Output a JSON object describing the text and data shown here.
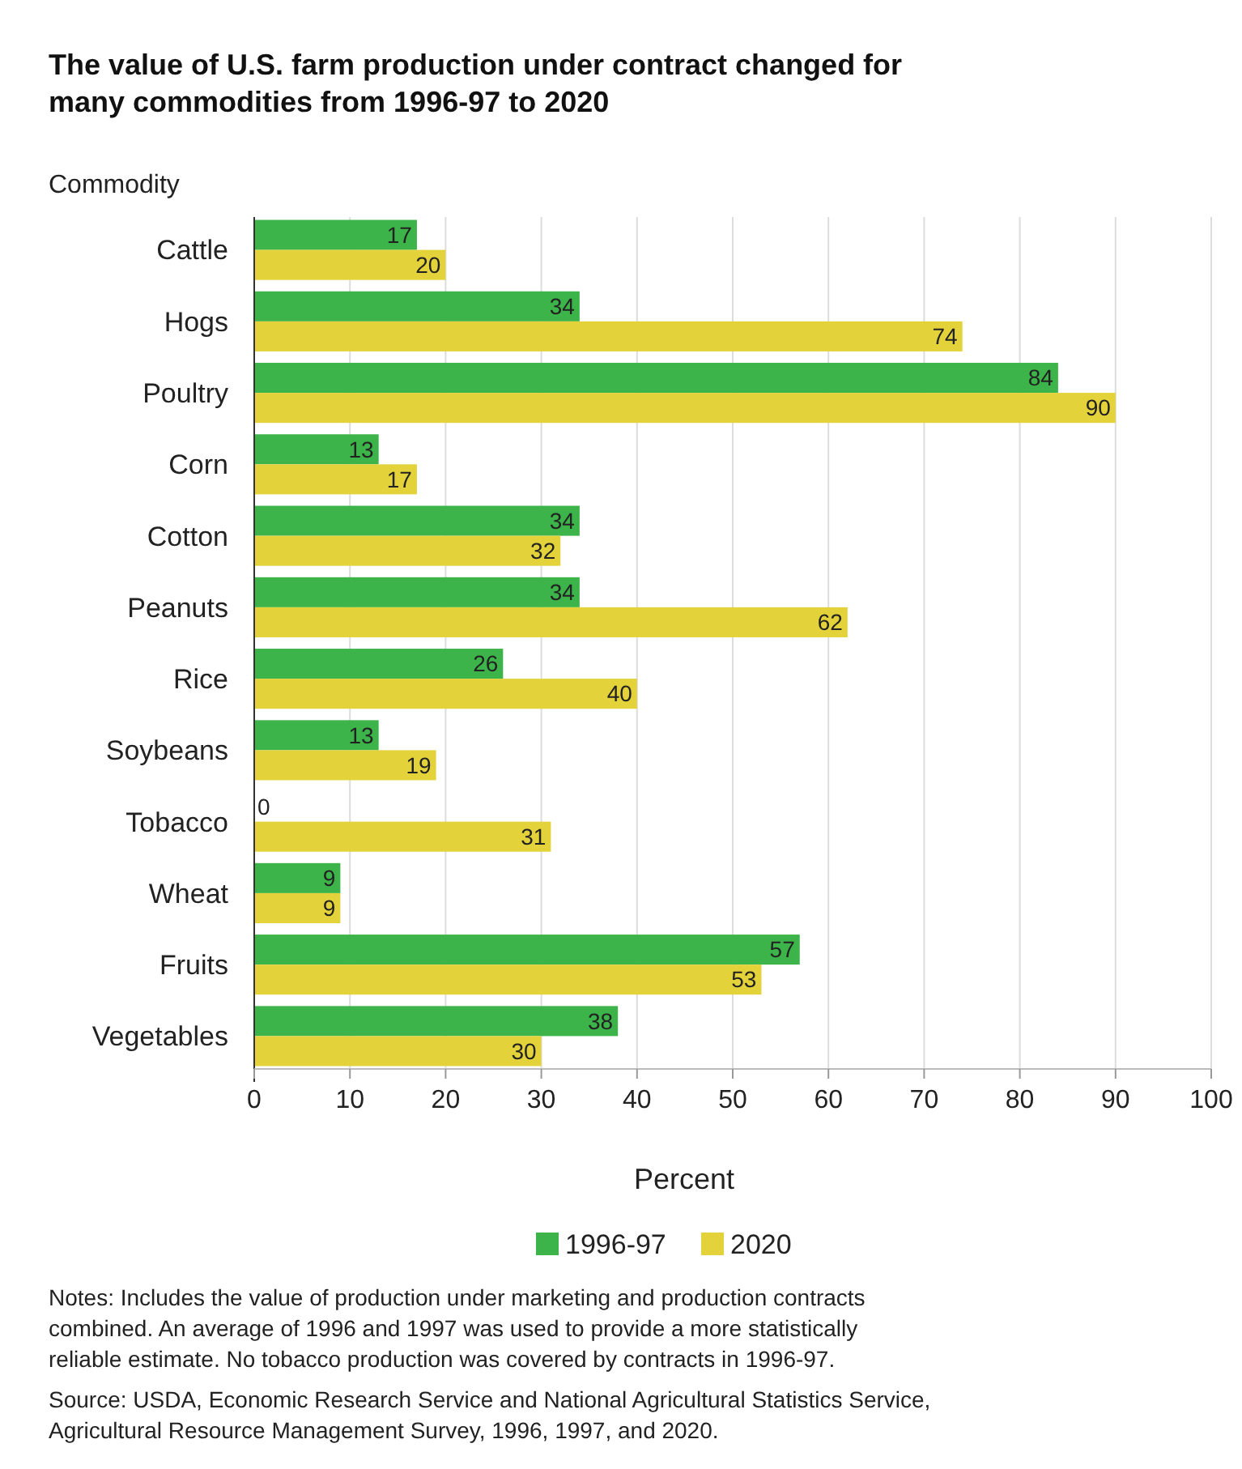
{
  "chart_data": {
    "type": "bar",
    "orientation": "horizontal",
    "title": "The value of U.S. farm production under contract changed for many commodities from 1996-97 to 2020",
    "ylabel": "Commodity",
    "xlabel": "Percent",
    "categories": [
      "Cattle",
      "Hogs",
      "Poultry",
      "Corn",
      "Cotton",
      "Peanuts",
      "Rice",
      "Soybeans",
      "Tobacco",
      "Wheat",
      "Fruits",
      "Vegetables"
    ],
    "series": [
      {
        "name": "1996-97",
        "color": "#3cb449",
        "values": [
          17,
          34,
          84,
          13,
          34,
          34,
          26,
          13,
          0,
          9,
          57,
          38
        ]
      },
      {
        "name": "2020",
        "color": "#e3d23a",
        "values": [
          20,
          74,
          90,
          17,
          32,
          62,
          40,
          19,
          31,
          9,
          53,
          30
        ]
      }
    ],
    "xlim": [
      0,
      100
    ],
    "xticks": [
      0,
      10,
      20,
      30,
      40,
      50,
      60,
      70,
      80,
      90,
      100
    ],
    "grid": "x",
    "legend": "bottom",
    "data_labels": true,
    "annotations": [
      "Notes: Includes the value of production under marketing and production contracts combined. An average of 1996 and 1997 was used to provide a more statistically reliable estimate. No tobacco production was covered by contracts in 1996-97.",
      "Source: USDA, Economic Research Service and National Agricultural Statistics Service, Agricultural Resource Management Survey, 1996, 1997, and 2020."
    ]
  }
}
